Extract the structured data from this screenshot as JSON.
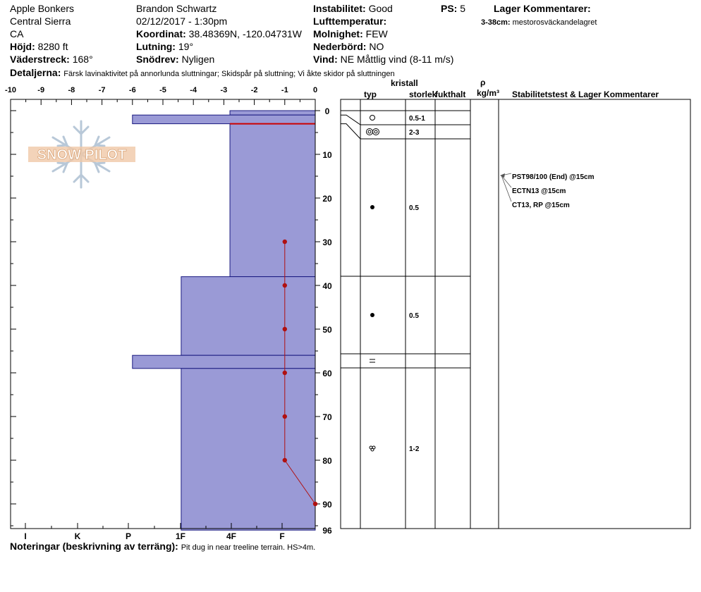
{
  "header": {
    "location": "Apple Bonkers",
    "region": "Central Sierra",
    "state": "CA",
    "elevation_label": "Höjd:",
    "elevation": "8280 ft",
    "aspect_label": "Väderstreck:",
    "aspect": "168°",
    "observer": "Brandon Schwartz",
    "datetime": "02/12/2017 - 1:30pm",
    "coord_label": "Koordinat:",
    "coord": "38.48369N, -120.04731W",
    "slope_label": "Lutning:",
    "slope": "19°",
    "drift_label": "Snödrev:",
    "drift": "Nyligen",
    "stability_label": "Instabilitet:",
    "stability": "Good",
    "airtemp_label": "Lufttemperatur:",
    "airtemp": "",
    "sky_label": "Molnighet:",
    "sky": "FEW",
    "precip_label": "Nederbörd:",
    "precip": "NO",
    "wind_label": "Vind:",
    "wind": "NE Måttlig vind (8-11 m/s)",
    "ps_label": "PS:",
    "ps": "5",
    "layer_comments_label": "Lager Kommentarer:",
    "layer_comment_range": "3-38cm:",
    "layer_comment_text": "mestorosväckandelagret",
    "details_label": "Detaljerna:",
    "details": "Färsk lavinaktivitet på annorlunda sluttningar;  Skidspår på sluttning;  Vi åkte skidor på sluttningen"
  },
  "footer": {
    "notes_label": "Noteringar (beskrivning av terräng):",
    "notes": "Pit dug in near treeline terrain. HS>4m."
  },
  "logo": {
    "text": "SNOW PILOT"
  },
  "columns": {
    "crystal": "kristall",
    "type": "typ",
    "size": "storlek",
    "moisture": "fukthalt",
    "density_symbol": "ρ",
    "density_unit": "kg/m³",
    "tests": "Stabilitetstest & Lager Kommentarer"
  },
  "stability_tests": [
    {
      "text": "PST98/100 (End) @15cm",
      "depth": 15
    },
    {
      "text": "ECTN13 @15cm",
      "depth": 15
    },
    {
      "text": "CT13, RP @15cm",
      "depth": 15
    }
  ],
  "colors": {
    "hardness_fill": "#9a9ad6",
    "hardness_stroke": "#1a1a80",
    "temp_line": "#b01010",
    "boundary_line": "#cc0000"
  },
  "chart_data": {
    "type": "snow-profile",
    "temp_axis": {
      "ticks": [
        "-10",
        "-9",
        "-8",
        "-7",
        "-6",
        "-5",
        "-4",
        "-3",
        "-2",
        "-1",
        "0"
      ],
      "range": [
        -10,
        0
      ]
    },
    "depth_axis": {
      "ticks": [
        "0",
        "10",
        "20",
        "30",
        "40",
        "50",
        "60",
        "70",
        "80",
        "90",
        "96"
      ],
      "range": [
        0,
        96
      ]
    },
    "hardness_axis": {
      "ticks": [
        "I",
        "K",
        "P",
        "1F",
        "4F",
        "F"
      ]
    },
    "hardness_layers": [
      {
        "top": 0,
        "bottom": 1,
        "temp_left": -2.8
      },
      {
        "top": 1,
        "bottom": 3,
        "temp_left": -6.0
      },
      {
        "top": 3,
        "bottom": 38,
        "temp_left": -2.8
      },
      {
        "top": 38,
        "bottom": 56,
        "temp_left": -4.4
      },
      {
        "top": 56,
        "bottom": 59,
        "temp_left": -6.0
      },
      {
        "top": 59,
        "bottom": 96,
        "temp_left": -4.4
      }
    ],
    "boundary_depth": 3,
    "temperature_profile": [
      {
        "depth": 30,
        "temp": -1
      },
      {
        "depth": 40,
        "temp": -1
      },
      {
        "depth": 50,
        "temp": -1
      },
      {
        "depth": 60,
        "temp": -1
      },
      {
        "depth": 70,
        "temp": -1
      },
      {
        "depth": 80,
        "temp": -1
      },
      {
        "depth": 90,
        "temp": 0
      }
    ],
    "layers": [
      {
        "top": 0,
        "bottom": 3,
        "type": "circle",
        "size": "0.5-1"
      },
      {
        "top": 3,
        "bottom": 6,
        "type": "double-circle",
        "size": "2-3"
      },
      {
        "top": 6,
        "bottom": 38,
        "type": "dot",
        "size": "0.5"
      },
      {
        "top": 38,
        "bottom": 56,
        "type": "dot",
        "size": "0.5"
      },
      {
        "top": 56,
        "bottom": 59,
        "type": "equals",
        "size": ""
      },
      {
        "top": 59,
        "bottom": 96,
        "type": "clover",
        "size": "1-2"
      }
    ]
  }
}
